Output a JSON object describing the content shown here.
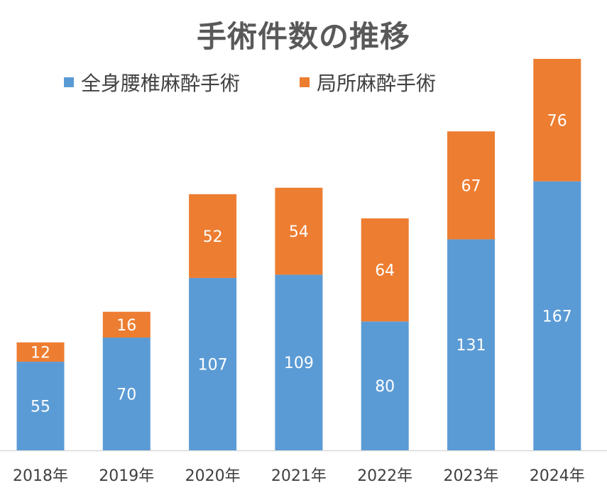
{
  "chart_data": {
    "type": "bar",
    "stacked": true,
    "title": "手術件数の推移",
    "categories": [
      "2018年",
      "2019年",
      "2020年",
      "2021年",
      "2022年",
      "2023年",
      "2024年"
    ],
    "series": [
      {
        "name": "全身腰椎麻酔手術",
        "color": "#5b9bd5",
        "values": [
          55,
          70,
          107,
          109,
          80,
          131,
          167
        ]
      },
      {
        "name": "局所麻酔手術",
        "color": "#ed7d31",
        "values": [
          12,
          16,
          52,
          54,
          64,
          67,
          76
        ]
      }
    ],
    "ylim": [
      0,
      243
    ],
    "grid": false,
    "legend": "top",
    "data_labels": true
  }
}
